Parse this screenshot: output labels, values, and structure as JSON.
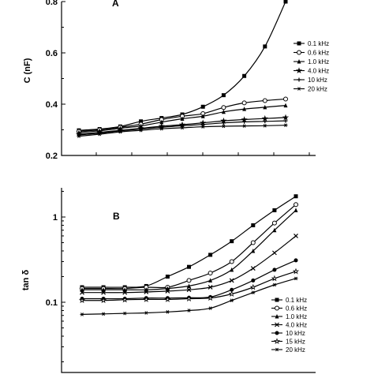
{
  "chart_data": [
    {
      "type": "line",
      "panel": "A",
      "ylabel": "C (nF)",
      "ylim": [
        0.2,
        0.8
      ],
      "yticks": [
        0.2,
        0.4,
        0.6,
        0.8
      ],
      "yticklabels": [
        "0.2",
        "0.4",
        "0.6",
        "0.8"
      ],
      "xlabel": "",
      "xlim": [
        0,
        11
      ],
      "legend_position": "right",
      "x": [
        0,
        1,
        2,
        3,
        4,
        5,
        6,
        7,
        8,
        9,
        10
      ],
      "series": [
        {
          "name": "0.1 kHz",
          "marker": "square-filled",
          "values": [
            0.298,
            0.303,
            0.313,
            0.333,
            0.346,
            0.36,
            0.39,
            0.435,
            0.51,
            0.625,
            0.8
          ]
        },
        {
          "name": "0.6 kHz",
          "marker": "circle-open",
          "values": [
            0.294,
            0.3,
            0.31,
            0.322,
            0.34,
            0.353,
            0.363,
            0.387,
            0.405,
            0.414,
            0.42
          ]
        },
        {
          "name": "1.0 kHz",
          "marker": "triangle-filled",
          "values": [
            0.29,
            0.296,
            0.306,
            0.315,
            0.33,
            0.343,
            0.353,
            0.37,
            0.381,
            0.388,
            0.395
          ]
        },
        {
          "name": "4.0 kHz",
          "marker": "star",
          "values": [
            0.283,
            0.29,
            0.298,
            0.306,
            0.314,
            0.32,
            0.327,
            0.335,
            0.34,
            0.344,
            0.348
          ]
        },
        {
          "name": "10  kHz",
          "marker": "plus",
          "values": [
            0.28,
            0.287,
            0.296,
            0.303,
            0.31,
            0.316,
            0.321,
            0.327,
            0.331,
            0.333,
            0.335
          ]
        },
        {
          "name": "20  kHz",
          "marker": "asterisk",
          "values": [
            0.275,
            0.283,
            0.292,
            0.298,
            0.304,
            0.308,
            0.312,
            0.314,
            0.315,
            0.316,
            0.318
          ]
        }
      ]
    },
    {
      "type": "line",
      "panel": "B",
      "ylabel": "tan δ",
      "yscale": "log",
      "ylim": [
        0.015,
        2.2
      ],
      "yticks": [
        0.1,
        1
      ],
      "yticklabels": [
        "0.1",
        "1"
      ],
      "xlabel": "",
      "xlim": [
        0,
        11
      ],
      "legend_position": "bottom-right",
      "x": [
        0,
        1,
        2,
        3,
        4,
        5,
        6,
        7,
        8,
        9,
        10
      ],
      "series": [
        {
          "name": "0.1 kHz",
          "marker": "square-filled",
          "values": [
            0.15,
            0.15,
            0.15,
            0.155,
            0.2,
            0.26,
            0.36,
            0.52,
            0.8,
            1.2,
            1.75
          ]
        },
        {
          "name": "0.6 kHz",
          "marker": "circle-open",
          "values": [
            0.145,
            0.145,
            0.145,
            0.15,
            0.15,
            0.18,
            0.22,
            0.3,
            0.5,
            0.85,
            1.4
          ]
        },
        {
          "name": "1.0 kHz",
          "marker": "triangle-filled",
          "values": [
            0.14,
            0.14,
            0.14,
            0.14,
            0.145,
            0.155,
            0.18,
            0.24,
            0.4,
            0.7,
            1.2
          ]
        },
        {
          "name": "4.0 kHz",
          "marker": "x",
          "values": [
            0.13,
            0.13,
            0.13,
            0.132,
            0.135,
            0.14,
            0.15,
            0.18,
            0.25,
            0.38,
            0.6
          ]
        },
        {
          "name": "10  kHz",
          "marker": "circle-filled",
          "values": [
            0.11,
            0.11,
            0.11,
            0.112,
            0.112,
            0.113,
            0.115,
            0.14,
            0.18,
            0.24,
            0.31
          ]
        },
        {
          "name": "15  kHz",
          "marker": "star-open",
          "values": [
            0.105,
            0.105,
            0.107,
            0.108,
            0.108,
            0.11,
            0.112,
            0.125,
            0.15,
            0.19,
            0.23
          ]
        },
        {
          "name": "20  kHz",
          "marker": "asterisk",
          "values": [
            0.072,
            0.073,
            0.074,
            0.075,
            0.077,
            0.08,
            0.085,
            0.105,
            0.13,
            0.16,
            0.19
          ]
        }
      ]
    }
  ]
}
